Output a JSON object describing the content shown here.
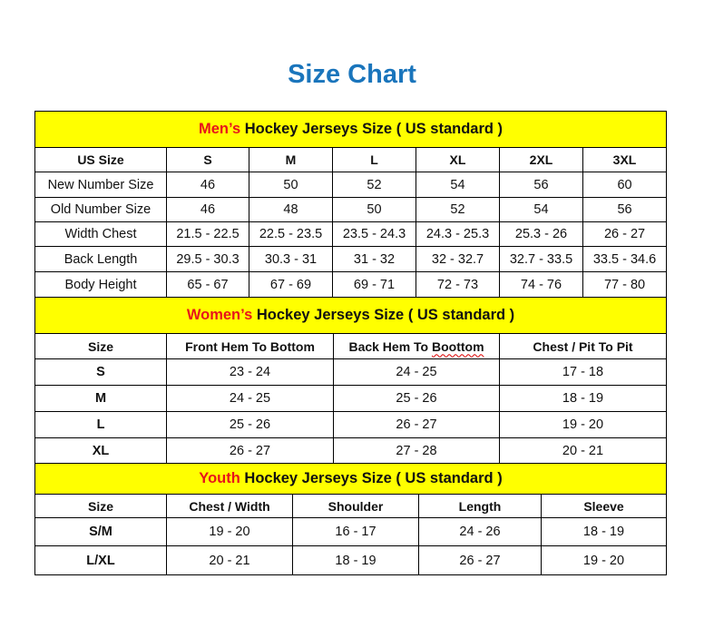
{
  "title": "Size Chart",
  "colors": {
    "title": "#1A75BC",
    "banner_bg": "#FFFF00",
    "highlight": "#E8141B"
  },
  "men": {
    "banner_highlight": "Men’s",
    "banner_rest": " Hockey Jerseys Size ( US standard )",
    "header": [
      "US Size",
      "S",
      "M",
      "L",
      "XL",
      "2XL",
      "3XL"
    ],
    "rows": [
      [
        "New Number Size",
        "46",
        "50",
        "52",
        "54",
        "56",
        "60"
      ],
      [
        "Old Number Size",
        "46",
        "48",
        "50",
        "52",
        "54",
        "56"
      ],
      [
        "Width Chest",
        "21.5 - 22.5",
        "22.5 - 23.5",
        "23.5 - 24.3",
        "24.3 - 25.3",
        "25.3 - 26",
        "26 - 27"
      ],
      [
        "Back Length",
        "29.5 - 30.3",
        "30.3 - 31",
        "31 - 32",
        "32 - 32.7",
        "32.7 - 33.5",
        "33.5 - 34.6"
      ],
      [
        "Body Height",
        "65 - 67",
        "67 - 69",
        "69 - 71",
        "72 - 73",
        "74 - 76",
        "77 - 80"
      ]
    ]
  },
  "women": {
    "banner_highlight": "Women’s",
    "banner_rest": " Hockey Jerseys Size ( US standard )",
    "header": [
      "Size",
      "Front Hem To Bottom",
      "Back Hem To ",
      "Boottom",
      "Chest / Pit To Pit"
    ],
    "rows": [
      [
        "S",
        "23 - 24",
        "24 - 25",
        "17 - 18"
      ],
      [
        "M",
        "24 - 25",
        "25 - 26",
        "18 - 19"
      ],
      [
        "L",
        "25 - 26",
        "26 - 27",
        "19 - 20"
      ],
      [
        "XL",
        "26 - 27",
        "27 - 28",
        "20 - 21"
      ]
    ]
  },
  "youth": {
    "banner_highlight": "Youth",
    "banner_rest": " Hockey Jerseys Size ( US standard )",
    "header": [
      "Size",
      "Chest / Width",
      "Shoulder",
      "Length",
      "Sleeve"
    ],
    "rows": [
      [
        "S/M",
        "19 - 20",
        "16 - 17",
        "24 - 26",
        "18 - 19"
      ],
      [
        "L/XL",
        "20 - 21",
        "18 - 19",
        "26 - 27",
        "19 - 20"
      ]
    ]
  }
}
